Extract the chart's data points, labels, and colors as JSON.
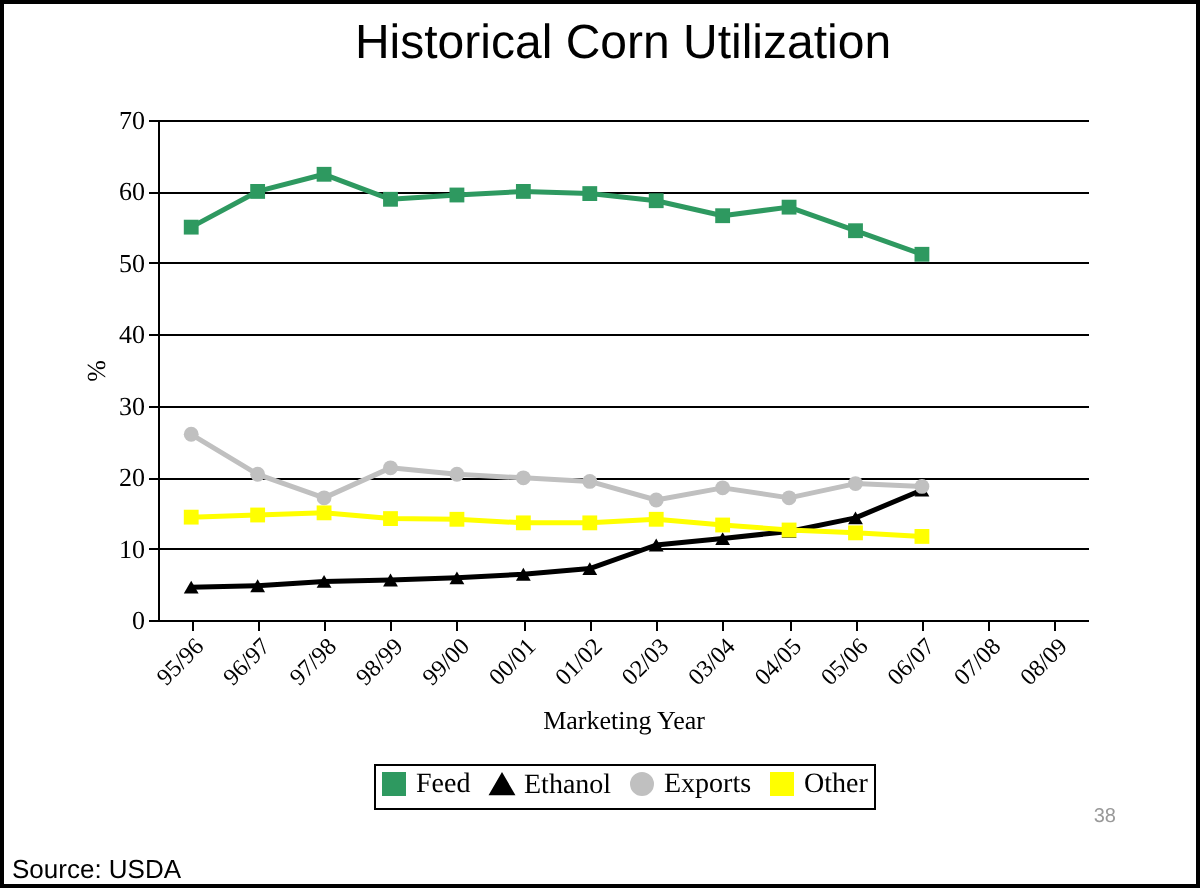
{
  "chart_data": {
    "type": "line",
    "title": "Historical Corn Utilization",
    "xlabel": "Marketing Year",
    "ylabel": "%",
    "categories": [
      "95/96",
      "96/97",
      "97/98",
      "98/99",
      "99/00",
      "00/01",
      "01/02",
      "02/03",
      "03/04",
      "04/05",
      "05/06",
      "06/07",
      "07/08",
      "08/09"
    ],
    "series": [
      {
        "name": "Feed",
        "color": "#2e9960",
        "marker": "square",
        "values": [
          55,
          60,
          62.4,
          58.9,
          59.5,
          60,
          59.7,
          58.7,
          56.6,
          57.8,
          54.5,
          51.2,
          null,
          null
        ]
      },
      {
        "name": "Ethanol",
        "color": "#000000",
        "marker": "triangle",
        "values": [
          4.6,
          4.8,
          5.4,
          5.6,
          5.9,
          6.4,
          7.2,
          10.5,
          11.4,
          12.4,
          14.3,
          18.2,
          null,
          null
        ]
      },
      {
        "name": "Exports",
        "color": "#c0c0c0",
        "marker": "circle",
        "values": [
          26,
          20.4,
          17.1,
          21.3,
          20.4,
          19.9,
          19.4,
          16.8,
          18.5,
          17.1,
          19.1,
          18.7,
          null,
          null
        ]
      },
      {
        "name": "Other",
        "color": "#ffff00",
        "marker": "square",
        "values": [
          14.4,
          14.7,
          15,
          14.2,
          14.1,
          13.6,
          13.6,
          14.1,
          13.3,
          12.6,
          12.2,
          11.7,
          null,
          null
        ]
      }
    ],
    "ylim": [
      0,
      70
    ],
    "yticks": [
      0,
      10,
      20,
      30,
      40,
      50,
      60,
      70
    ],
    "grid": "y",
    "legend": "bottom",
    "annotations": [
      "Source: USDA",
      "38"
    ]
  }
}
